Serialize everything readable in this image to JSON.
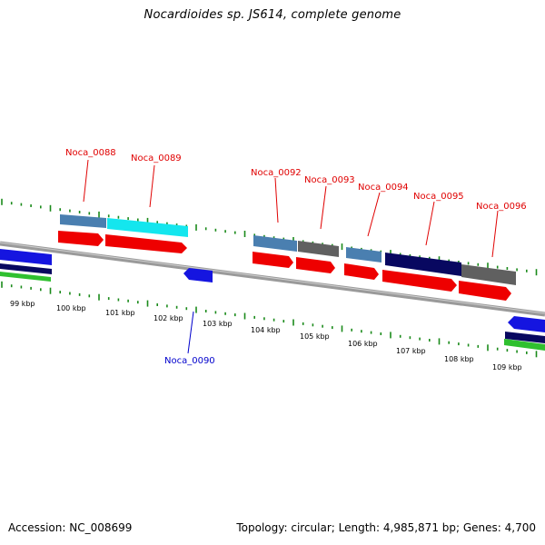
{
  "title": "Nocardioides sp. JS614, complete genome",
  "footer": {
    "accession": "Accession: NC_008699",
    "stats": "Topology: circular; Length: 4,985,871 bp; Genes: 4,700"
  },
  "colors": {
    "backbone": "#8a8a8a",
    "tick": "#1a8a1a",
    "label_forward": "#e00000",
    "label_reverse": "#0000cc",
    "cds_forward": "#ee0000",
    "cds_reverse": "#1515e0",
    "feature_steelblue": "#4a7fb0",
    "feature_cyan": "#14e6ee",
    "feature_gray": "#606060",
    "feature_navy": "#080860",
    "feature_green": "#2fc02f"
  },
  "map": {
    "scale_labels": [
      "99 kbp",
      "100 kbp",
      "101 kbp",
      "102 kbp",
      "103 kbp",
      "104 kbp",
      "105 kbp",
      "106 kbp",
      "107 kbp",
      "108 kbp",
      "109 kbp"
    ],
    "genes": [
      {
        "name": "Noca_0088",
        "strand": "forward"
      },
      {
        "name": "Noca_0089",
        "strand": "forward"
      },
      {
        "name": "Noca_0090",
        "strand": "reverse"
      },
      {
        "name": "Noca_0092",
        "strand": "forward"
      },
      {
        "name": "Noca_0093",
        "strand": "forward"
      },
      {
        "name": "Noca_0094",
        "strand": "forward"
      },
      {
        "name": "Noca_0095",
        "strand": "forward"
      },
      {
        "name": "Noca_0096",
        "strand": "forward"
      }
    ]
  }
}
